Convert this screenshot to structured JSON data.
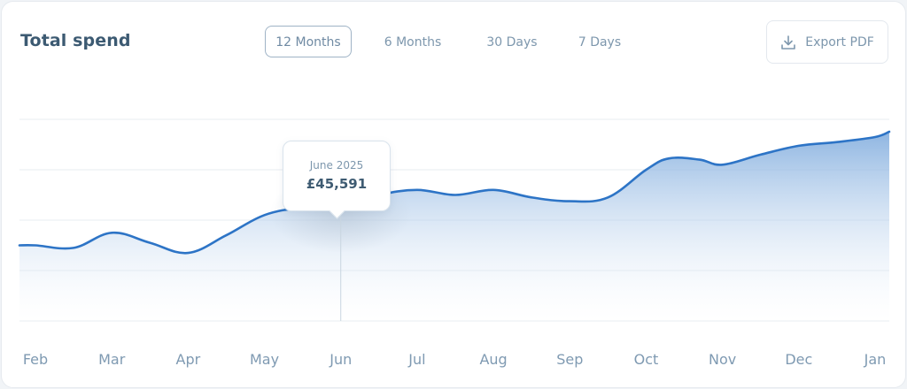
{
  "header": {
    "title": "Total spend"
  },
  "tabs": [
    {
      "label": "12 Months",
      "active": true
    },
    {
      "label": "6 Months",
      "active": false
    },
    {
      "label": "30 Days",
      "active": false
    },
    {
      "label": "7 Days",
      "active": false
    }
  ],
  "export": {
    "label": "Export PDF",
    "icon": "download-icon"
  },
  "tooltip": {
    "date": "June 2025",
    "value": "£45,591"
  },
  "colors": {
    "line": "#2d74c6",
    "fill": "#7aa8dc",
    "grid": "#e7ecf1",
    "label": "#7f9ab2"
  },
  "chart_data": {
    "type": "area",
    "title": "Total spend",
    "categories": [
      "Feb",
      "Mar",
      "Apr",
      "May",
      "Jun",
      "Jul",
      "Aug",
      "Sep",
      "Oct",
      "Nov",
      "Dec",
      "Jan"
    ],
    "x": [
      0,
      0.5,
      1,
      1.5,
      2,
      2.5,
      3,
      3.5,
      4,
      4.5,
      5,
      5.5,
      6,
      6.5,
      7,
      7.5,
      8,
      8.3,
      8.7,
      9,
      9.5,
      10,
      10.5,
      11
    ],
    "values": [
      30000,
      29000,
      35000,
      31000,
      27000,
      34000,
      42000,
      45000,
      45591,
      50000,
      52000,
      50000,
      52000,
      49000,
      47500,
      49000,
      60000,
      64500,
      64000,
      62000,
      66000,
      69500,
      71000,
      73000
    ],
    "ylim": [
      0,
      80000
    ],
    "highlight": {
      "category": "Jun",
      "x": 4,
      "value": 45591
    },
    "grid": true,
    "legend": "none"
  }
}
